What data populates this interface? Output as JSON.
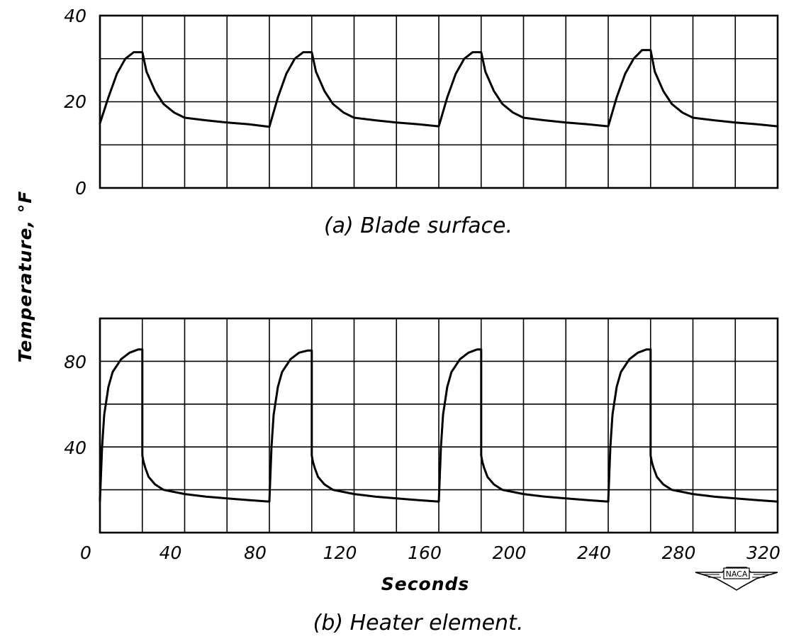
{
  "y_axis_label": "Temperature, °F",
  "x_axis_label": "Seconds",
  "logo_text": "NACA",
  "chart_data": [
    {
      "type": "line",
      "caption": "(a) Blade surface.",
      "ylim": [
        0,
        40
      ],
      "xlim": [
        0,
        320
      ],
      "yticks": [
        "0",
        "20",
        "40"
      ],
      "grid": true,
      "series": [
        {
          "x": [
            0,
            4,
            8,
            12,
            16,
            18,
            20,
            22,
            26,
            30,
            35,
            40,
            50,
            60,
            70,
            80,
            80,
            84,
            88,
            92,
            96,
            98,
            100,
            102,
            106,
            110,
            115,
            120,
            130,
            140,
            150,
            160,
            160,
            164,
            168,
            172,
            176,
            178,
            180,
            182,
            186,
            190,
            195,
            200,
            210,
            220,
            230,
            240,
            240,
            244,
            248,
            252,
            256,
            258,
            260,
            262,
            266,
            270,
            275,
            280,
            290,
            300,
            310,
            320
          ],
          "y": [
            15,
            21,
            26.5,
            30,
            31.5,
            31.5,
            31.5,
            27,
            22.5,
            19.5,
            17.5,
            16.3,
            15.7,
            15.2,
            14.8,
            14.2,
            14.2,
            21,
            26.5,
            30,
            31.5,
            31.5,
            31.5,
            27,
            22.5,
            19.5,
            17.5,
            16.3,
            15.7,
            15.2,
            14.8,
            14.3,
            14.3,
            21,
            26.5,
            30,
            31.5,
            31.5,
            31.5,
            27,
            22.5,
            19.5,
            17.5,
            16.3,
            15.7,
            15.2,
            14.8,
            14.3,
            14.3,
            21,
            26.5,
            30,
            32,
            32,
            32,
            27,
            22.5,
            19.5,
            17.5,
            16.3,
            15.7,
            15.2,
            14.8,
            14.3
          ]
        }
      ]
    },
    {
      "type": "line",
      "caption": "(b) Heater element.",
      "ylim": [
        0,
        100
      ],
      "xlim": [
        0,
        320
      ],
      "yticks": [
        "",
        "40",
        "80"
      ],
      "xticks": [
        "0",
        "40",
        "80",
        "120",
        "160",
        "200",
        "240",
        "280",
        "320"
      ],
      "grid": true,
      "series": [
        {
          "x": [
            0,
            1,
            2,
            4,
            6,
            10,
            14,
            18,
            20,
            20,
            20.6,
            21.5,
            23,
            26,
            30,
            40,
            50,
            60,
            70,
            80,
            80,
            81,
            82,
            84,
            86,
            90,
            94,
            98,
            100,
            100,
            100.6,
            101.5,
            103,
            106,
            110,
            120,
            130,
            140,
            150,
            160,
            160,
            161,
            162,
            164,
            166,
            170,
            174,
            178,
            180,
            180,
            180.6,
            181.5,
            183,
            186,
            190,
            200,
            210,
            220,
            230,
            240,
            240,
            241,
            242,
            244,
            246,
            250,
            254,
            258,
            260,
            260,
            260.6,
            261.5,
            263,
            266,
            270,
            280,
            290,
            300,
            310,
            320
          ],
          "y": [
            15,
            40,
            55,
            68,
            75,
            81,
            84,
            85.5,
            85.5,
            36,
            33,
            30,
            26,
            22.5,
            20,
            18,
            16.8,
            16,
            15.2,
            14.5,
            14.5,
            40,
            55,
            68,
            75,
            81,
            84,
            85,
            85,
            36,
            33,
            30,
            26,
            22.5,
            20,
            18,
            16.8,
            16,
            15.2,
            14.5,
            14.5,
            40,
            55,
            68,
            75,
            81,
            84,
            85.5,
            85.5,
            36,
            33,
            30,
            26,
            22.5,
            20,
            18,
            16.8,
            16,
            15.2,
            14.5,
            14.5,
            40,
            55,
            68,
            75,
            81,
            84,
            85.5,
            85.5,
            36,
            33,
            30,
            26,
            22.5,
            20,
            18,
            16.8,
            16,
            15.2,
            14.5
          ]
        }
      ]
    }
  ]
}
